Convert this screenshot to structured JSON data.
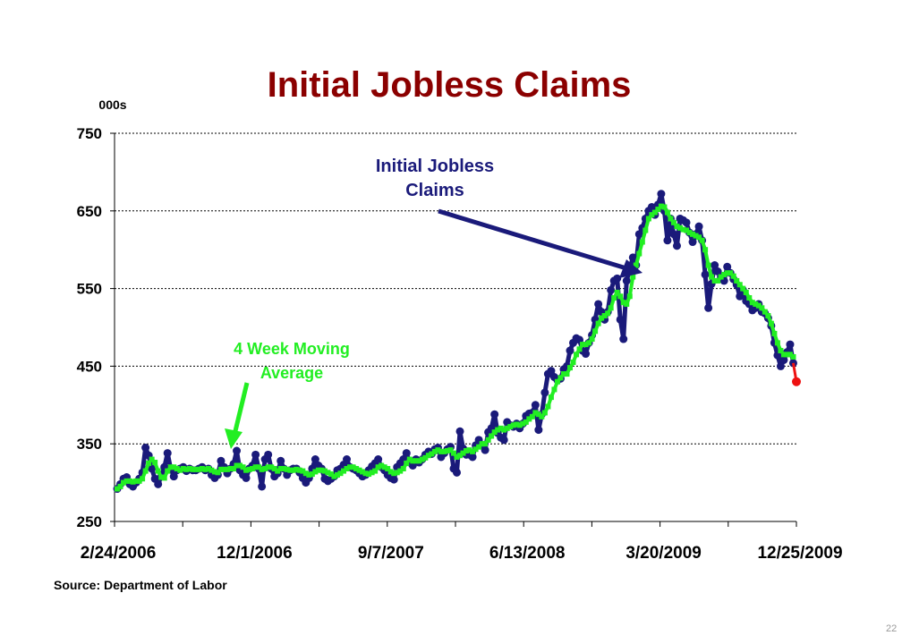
{
  "slide_number": "22",
  "source": "Source: Department of Labor",
  "colors": {
    "title": "#8b0000",
    "claims": "#1a1a7a",
    "average": "#22ee22",
    "latest": "#ee1111"
  },
  "chart_data": {
    "type": "line",
    "title": "Initial Jobless Claims",
    "ylabel": "000s",
    "xlabel": "",
    "ylim": [
      250,
      750
    ],
    "yticks": [
      250,
      350,
      450,
      550,
      650,
      750
    ],
    "x_tick_labels": [
      "2/24/2006",
      "12/1/2006",
      "9/7/2007",
      "6/13/2008",
      "3/20/2009",
      "12/25/2009"
    ],
    "x_range": [
      "2/24/2006",
      "12/25/2009"
    ],
    "grid": "horizontal dotted",
    "annotations": [
      {
        "text_lines": [
          "Initial Jobless",
          "Claims"
        ],
        "points_to": "Initial Jobless Claims"
      },
      {
        "text_lines": [
          "4 Week Moving",
          "Average"
        ],
        "points_to": "4 Week Moving Average"
      }
    ],
    "series": [
      {
        "name": "Initial Jobless Claims",
        "values": [
          292,
          298,
          305,
          307,
          298,
          295,
          300,
          305,
          313,
          345,
          335,
          318,
          305,
          298,
          308,
          320,
          338,
          318,
          308,
          316,
          318,
          320,
          315,
          318,
          316,
          316,
          318,
          320,
          316,
          318,
          310,
          306,
          310,
          328,
          320,
          312,
          318,
          324,
          341,
          316,
          310,
          306,
          318,
          322,
          336,
          318,
          295,
          330,
          336,
          318,
          308,
          312,
          328,
          318,
          310,
          316,
          318,
          318,
          313,
          306,
          300,
          306,
          318,
          330,
          322,
          318,
          305,
          302,
          305,
          308,
          316,
          318,
          323,
          330,
          320,
          318,
          316,
          312,
          308,
          310,
          316,
          321,
          325,
          330,
          320,
          316,
          310,
          306,
          304,
          320,
          325,
          330,
          338,
          326,
          322,
          330,
          326,
          330,
          336,
          340,
          337,
          343,
          345,
          333,
          338,
          343,
          346,
          318,
          313,
          366,
          344,
          336,
          336,
          333,
          348,
          355,
          348,
          342,
          365,
          370,
          388,
          364,
          358,
          355,
          378,
          374,
          372,
          376,
          370,
          376,
          386,
          389,
          390,
          400,
          368,
          388,
          416,
          440,
          444,
          436,
          432,
          434,
          446,
          450,
          470,
          480,
          486,
          484,
          470,
          466,
          480,
          490,
          510,
          530,
          520,
          510,
          520,
          548,
          560,
          563,
          510,
          485,
          560,
          575,
          590,
          580,
          620,
          628,
          640,
          650,
          655,
          645,
          658,
          672,
          650,
          612,
          640,
          620,
          605,
          640,
          638,
          635,
          622,
          610,
          620,
          630,
          612,
          568,
          525,
          556,
          580,
          572,
          565,
          560,
          578,
          570,
          562,
          555,
          540,
          548,
          534,
          530,
          522,
          525,
          530,
          520,
          518,
          512,
          502,
          480,
          464,
          450,
          458,
          468,
          478,
          454,
          430
        ]
      },
      {
        "name": "4 Week Moving Average",
        "values": [
          292,
          295,
          300,
          302,
          302,
          301,
          302,
          302,
          305,
          315,
          325,
          330,
          326,
          315,
          307,
          306,
          315,
          320,
          320,
          318,
          316,
          318,
          317,
          318,
          317,
          317,
          317,
          318,
          317,
          318,
          316,
          314,
          313,
          317,
          317,
          317,
          318,
          318,
          322,
          322,
          320,
          316,
          317,
          318,
          320,
          320,
          317,
          318,
          320,
          320,
          318,
          315,
          318,
          318,
          317,
          316,
          316,
          317,
          316,
          315,
          312,
          310,
          311,
          314,
          316,
          316,
          315,
          313,
          311,
          308,
          310,
          312,
          315,
          318,
          320,
          320,
          318,
          316,
          314,
          312,
          311,
          313,
          315,
          320,
          322,
          320,
          318,
          314,
          312,
          313,
          315,
          318,
          325,
          330,
          328,
          328,
          328,
          330,
          332,
          335,
          337,
          340,
          342,
          340,
          340,
          341,
          342,
          338,
          333,
          335,
          338,
          341,
          342,
          340,
          343,
          346,
          350,
          350,
          355,
          360,
          365,
          368,
          370,
          368,
          370,
          372,
          374,
          375,
          374,
          376,
          378,
          382,
          385,
          390,
          388,
          385,
          390,
          398,
          410,
          420,
          430,
          435,
          440,
          440,
          448,
          455,
          465,
          472,
          478,
          478,
          480,
          485,
          495,
          505,
          512,
          515,
          518,
          525,
          538,
          545,
          540,
          532,
          530,
          540,
          565,
          580,
          595,
          610,
          625,
          640,
          645,
          648,
          652,
          656,
          655,
          648,
          640,
          635,
          630,
          628,
          626,
          625,
          622,
          620,
          618,
          616,
          612,
          600,
          580,
          565,
          560,
          560,
          565,
          568,
          570,
          570,
          566,
          560,
          555,
          550,
          545,
          538,
          532,
          530,
          528,
          525,
          520,
          515,
          505,
          492,
          480,
          470,
          465,
          465,
          465,
          462
        ]
      }
    ]
  }
}
